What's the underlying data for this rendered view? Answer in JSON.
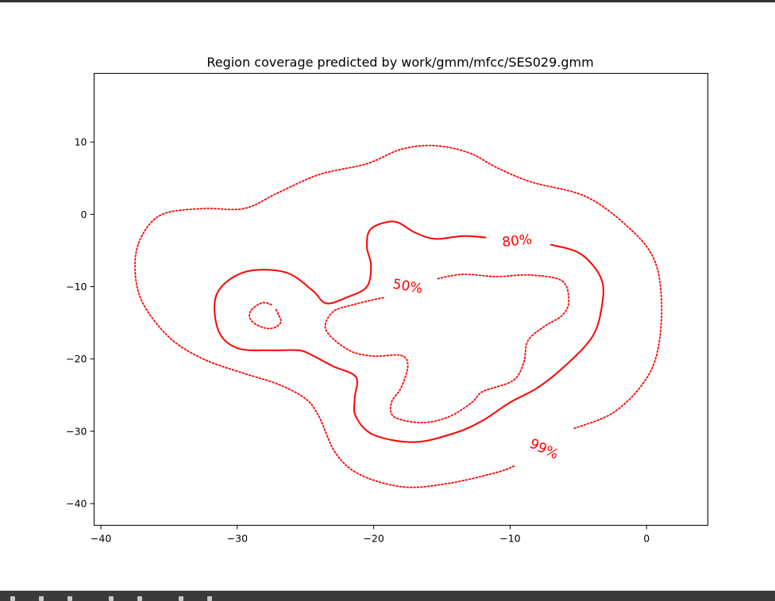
{
  "chart_data": {
    "type": "line",
    "title": "Region coverage predicted by work/gmm/mfcc/SES029.gmm",
    "xlabel": "",
    "ylabel": "",
    "xlim": [
      -40.5,
      4.5
    ],
    "ylim": [
      -43,
      19.5
    ],
    "xticks": [
      -40,
      -30,
      -20,
      -10,
      0
    ],
    "xtick_labels": [
      "−40",
      "−30",
      "−20",
      "−10",
      "0"
    ],
    "yticks": [
      10,
      0,
      -10,
      -20,
      -30,
      -40
    ],
    "ytick_labels": [
      "10",
      "0",
      "−10",
      "−20",
      "−30",
      "−40"
    ],
    "grid": false,
    "color": "#ff0000",
    "series": [
      {
        "name": "99%",
        "style": "dotted",
        "closed": true,
        "points": [
          [
            -5.3,
            -29.6
          ],
          [
            -2.5,
            -27.5
          ],
          [
            -0.3,
            -23.5
          ],
          [
            0.8,
            -19
          ],
          [
            1.1,
            -12
          ],
          [
            0.5,
            -6
          ],
          [
            -1.5,
            -1.5
          ],
          [
            -4.5,
            2.5
          ],
          [
            -8.5,
            4.5
          ],
          [
            -11,
            6.5
          ],
          [
            -13,
            8.5
          ],
          [
            -15.5,
            9.5
          ],
          [
            -18,
            9
          ],
          [
            -20.5,
            7
          ],
          [
            -24,
            5.5
          ],
          [
            -27,
            3
          ],
          [
            -29.5,
            0.8
          ],
          [
            -32.5,
            0.8
          ],
          [
            -35.5,
            0
          ],
          [
            -37,
            -3
          ],
          [
            -37.5,
            -7
          ],
          [
            -37,
            -12
          ],
          [
            -35,
            -17
          ],
          [
            -32.5,
            -20
          ],
          [
            -29.5,
            -22
          ],
          [
            -27,
            -23.5
          ],
          [
            -25,
            -25.5
          ],
          [
            -24,
            -28
          ],
          [
            -22.8,
            -33
          ],
          [
            -21,
            -36
          ],
          [
            -17.8,
            -37.7
          ],
          [
            -14.5,
            -37.2
          ],
          [
            -11,
            -35.7
          ],
          [
            -9.7,
            -34.8
          ]
        ]
      },
      {
        "name": "80%",
        "style": "solid",
        "closed": true,
        "points": [
          [
            -7,
            -4.2
          ],
          [
            -4.8,
            -5.5
          ],
          [
            -3.3,
            -9
          ],
          [
            -3.3,
            -13
          ],
          [
            -4,
            -17
          ],
          [
            -6,
            -21
          ],
          [
            -8,
            -24
          ],
          [
            -10,
            -26
          ],
          [
            -12,
            -28.5
          ],
          [
            -14,
            -30.2
          ],
          [
            -17,
            -31.5
          ],
          [
            -20,
            -30.5
          ],
          [
            -21.3,
            -28
          ],
          [
            -21.4,
            -25.5
          ],
          [
            -21.3,
            -22.5
          ],
          [
            -23,
            -21
          ],
          [
            -24.5,
            -19.5
          ],
          [
            -25.5,
            -18.8
          ],
          [
            -27.5,
            -18.8
          ],
          [
            -30,
            -18.5
          ],
          [
            -31.4,
            -16
          ],
          [
            -31.5,
            -11
          ],
          [
            -29.5,
            -8
          ],
          [
            -26.5,
            -8
          ],
          [
            -24.5,
            -10.5
          ],
          [
            -23.5,
            -12.3
          ],
          [
            -22,
            -11.5
          ],
          [
            -20.5,
            -10
          ],
          [
            -20.2,
            -7
          ],
          [
            -20.5,
            -4.5
          ],
          [
            -20.2,
            -2
          ],
          [
            -18.5,
            -1
          ],
          [
            -17,
            -2.5
          ],
          [
            -15.5,
            -3.4
          ],
          [
            -13.5,
            -3
          ],
          [
            -11.8,
            -3.2
          ]
        ]
      },
      {
        "name": "50%",
        "style": "dotted",
        "closed": true,
        "points": [
          [
            -15.3,
            -8.9
          ],
          [
            -13.5,
            -8.3
          ],
          [
            -11,
            -8.6
          ],
          [
            -8.5,
            -8.4
          ],
          [
            -6.2,
            -9.2
          ],
          [
            -5.7,
            -12
          ],
          [
            -6.2,
            -14
          ],
          [
            -7.5,
            -15.5
          ],
          [
            -8.7,
            -17.5
          ],
          [
            -9,
            -20.5
          ],
          [
            -9.8,
            -23
          ],
          [
            -12,
            -24.5
          ],
          [
            -12.8,
            -26
          ],
          [
            -14.5,
            -28
          ],
          [
            -16.5,
            -28.8
          ],
          [
            -18.5,
            -28
          ],
          [
            -18.7,
            -26
          ],
          [
            -18,
            -24
          ],
          [
            -17.5,
            -21
          ],
          [
            -18,
            -19.5
          ],
          [
            -20,
            -19.6
          ],
          [
            -21.8,
            -18.8
          ],
          [
            -23.5,
            -16
          ],
          [
            -23,
            -13.5
          ],
          [
            -21.5,
            -12.5
          ],
          [
            -20,
            -11.8
          ],
          [
            -19.2,
            -11.5
          ]
        ]
      },
      {
        "name": "",
        "style": "dotted",
        "closed": true,
        "points": [
          [
            -27.5,
            -12.5
          ],
          [
            -28,
            -12.2
          ],
          [
            -28.5,
            -12.5
          ],
          [
            -29,
            -13.3
          ],
          [
            -29.1,
            -14.2
          ],
          [
            -28.8,
            -15
          ],
          [
            -28.2,
            -15.6
          ],
          [
            -27.6,
            -15.8
          ],
          [
            -27.1,
            -15.5
          ],
          [
            -26.8,
            -14.8
          ],
          [
            -27,
            -13.8
          ],
          [
            -27.2,
            -13
          ]
        ]
      }
    ],
    "labels": [
      {
        "text": "80%",
        "x": -9.5,
        "y": -3.6,
        "rotation": 6
      },
      {
        "text": "50%",
        "x": -17.5,
        "y": -9.9,
        "rotation": -10
      },
      {
        "text": "99%",
        "x": -7.5,
        "y": -32.4,
        "rotation": -25
      }
    ]
  },
  "toolbar": {
    "icons": [
      "home-icon",
      "back-icon",
      "forward-icon",
      "pan-icon",
      "zoom-icon",
      "configure-icon",
      "save-icon"
    ]
  }
}
